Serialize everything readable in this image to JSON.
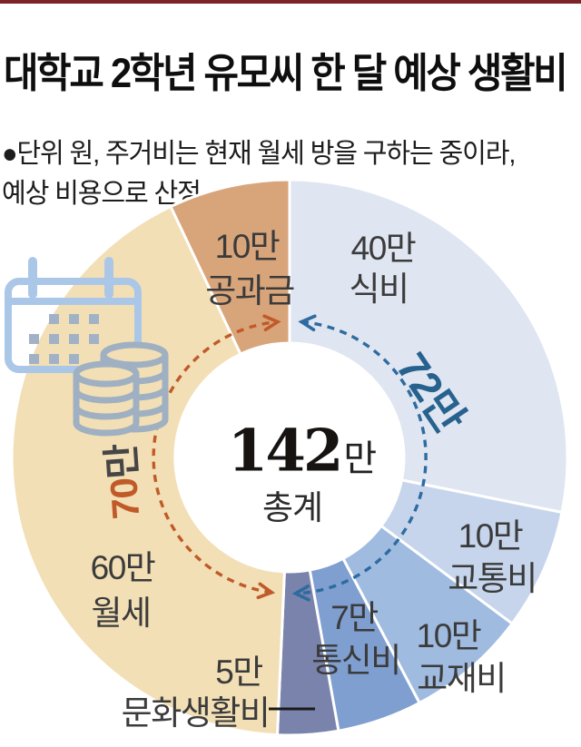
{
  "header": {
    "title": "대학교 2학년 유모씨 한 달 예상 생활비",
    "note_line1": "●단위 원, 주거비는 현재 월세 방을 구하는 중이라,",
    "note_line2": "예상 비용으로 산정",
    "top_rule_color": "#7b2328"
  },
  "chart_data": {
    "type": "pie",
    "title": "대학교 2학년 유모씨 한 달 예상 생활비",
    "unit": "원",
    "start_angle_deg": 0,
    "direction": "clockwise",
    "total": {
      "value": 142,
      "number": "142",
      "suffix": "만",
      "sublabel": "총계"
    },
    "slices": [
      {
        "category": "식비",
        "value": 40,
        "label": "40만",
        "color": "#dfe5f1",
        "label_lines": [
          [
            "40만",
            422,
            270
          ],
          [
            "식비",
            417,
            315
          ]
        ]
      },
      {
        "category": "교통비",
        "value": 10,
        "label": "10만",
        "color": "#c6d5ec",
        "label_lines": [
          [
            "10만",
            540,
            587
          ],
          [
            "교통비",
            542,
            634
          ]
        ]
      },
      {
        "category": "교재비",
        "value": 10,
        "label": "10만",
        "color": "#a0bbe0",
        "label_lines": [
          [
            "10만",
            494,
            697
          ],
          [
            "교재비",
            508,
            744
          ]
        ]
      },
      {
        "category": "통신비",
        "value": 7,
        "label": "7만",
        "color": "#7f9fd0",
        "label_lines": [
          [
            "7만",
            390,
            677
          ],
          [
            "통신비",
            392,
            724
          ]
        ]
      },
      {
        "category": "문화생활비",
        "value": 5,
        "label": "5만",
        "color": "#7a83ab",
        "label_lines": [
          [
            "5만",
            263,
            737
          ],
          [
            "문화생활비",
            215,
            782
          ]
        ]
      },
      {
        "category": "월세",
        "value": 60,
        "label": "60만",
        "color": "#f2dfb5",
        "label_lines": [
          [
            "60만",
            135,
            622
          ],
          [
            "월세",
            133,
            672
          ]
        ]
      },
      {
        "category": "공과금",
        "value": 10,
        "label": "10만",
        "color": "#d8a57b",
        "label_lines": [
          [
            "10만",
            272,
            268
          ],
          [
            "공과금",
            275,
            317
          ]
        ]
      }
    ],
    "groups": [
      {
        "number": "72",
        "suffix": "만",
        "value": 72,
        "slice_span": [
          0,
          4
        ],
        "arrow_color": "#2e6ba0",
        "number_color": "#27628f",
        "suffix_color": "#27628f"
      },
      {
        "number": "70",
        "suffix": "만",
        "value": 70,
        "slice_span": [
          5,
          6
        ],
        "arrow_color": "#c05a28",
        "number_color": "#c05a28",
        "suffix_color": "#464646"
      }
    ],
    "text_color": "#3b3b3b",
    "separator_color": "#ffffff",
    "legend_position": "on-slice",
    "connector": {
      "from_label": "문화생활비",
      "color": "#1a1a1a"
    }
  },
  "icons": {
    "calendar": {
      "name": "calendar-icon",
      "color": "#abc7e8",
      "grid_color": "#a2b2c6"
    },
    "coins": {
      "name": "coins-icon",
      "color": "#9fb0c2",
      "fill": "#f2dfb5"
    }
  }
}
